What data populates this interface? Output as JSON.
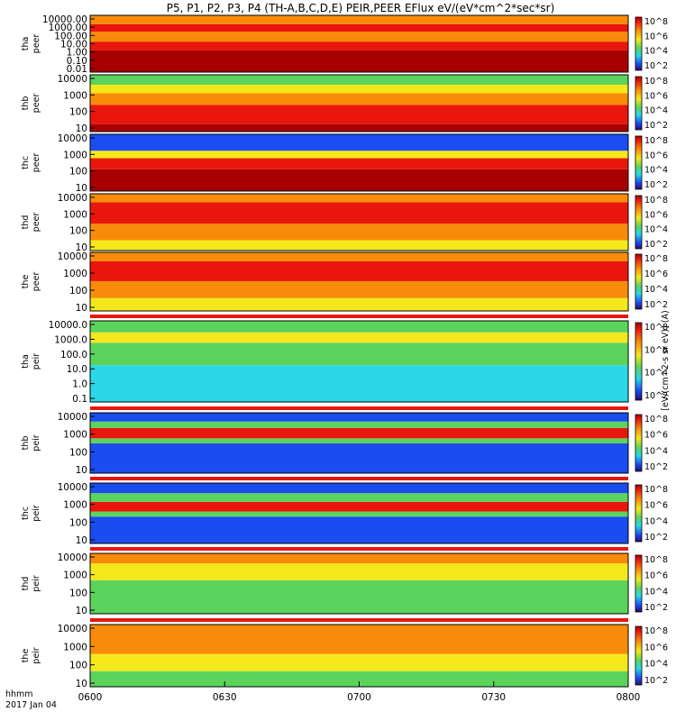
{
  "title": "P5, P1, P2, P3, P4 (TH-A,B,C,D,E) PEIR,PEER EFlux eV/(eV*cm^2*sec*sr)",
  "colorbar_label": "[eV/(cm^2-s sr eV)] (A)",
  "bottom_label": {
    "line1": "hhmm",
    "line2": "2017 Jan 04"
  },
  "colorbar_ticks": [
    "10^2",
    "10^4",
    "10^6",
    "10^8"
  ],
  "colors": {
    "red": "#e8160c",
    "orange": "#f88c0a",
    "yellow": "#f4e81c",
    "green": "#5cd35c",
    "cyan": "#2ad8e8",
    "blue": "#1a4cf0",
    "darkred": "#a80000",
    "black": "#000000"
  },
  "chart_data": [
    {
      "type": "heatmap",
      "probe": "tha",
      "species": "peer",
      "ylabel": "tha peer",
      "yscale": "log",
      "yticks": [
        "10000.00",
        "1000.00",
        "100.00",
        "10.00",
        "1.00",
        "0.10",
        "0.01"
      ],
      "ylim": [
        0.01,
        30000
      ],
      "description_bands": [
        {
          "from": 0.01,
          "to": 3,
          "level": "darkred"
        },
        {
          "from": 3,
          "to": 30,
          "level": "red"
        },
        {
          "from": 30,
          "to": 400,
          "level": "orange"
        },
        {
          "from": 400,
          "to": 3000,
          "level": "red"
        },
        {
          "from": 3000,
          "to": 30000,
          "level": "orange"
        }
      ]
    },
    {
      "type": "heatmap",
      "probe": "thb",
      "species": "peer",
      "ylabel": "thb peer",
      "yscale": "log",
      "yticks": [
        "10000",
        "1000",
        "100",
        "10"
      ],
      "ylim": [
        7,
        20000
      ],
      "description_bands": [
        {
          "from": 7,
          "to": 20,
          "level": "darkred"
        },
        {
          "from": 20,
          "to": 300,
          "level": "red"
        },
        {
          "from": 300,
          "to": 1500,
          "level": "orange"
        },
        {
          "from": 1500,
          "to": 5000,
          "level": "yellow"
        },
        {
          "from": 5000,
          "to": 20000,
          "level": "green"
        }
      ]
    },
    {
      "type": "heatmap",
      "probe": "thc",
      "species": "peer",
      "ylabel": "thc peer",
      "yscale": "log",
      "yticks": [
        "10000",
        "1000",
        "100",
        "10"
      ],
      "ylim": [
        7,
        20000
      ],
      "description_bands": [
        {
          "from": 7,
          "to": 150,
          "level": "darkred"
        },
        {
          "from": 150,
          "to": 700,
          "level": "red"
        },
        {
          "from": 700,
          "to": 2000,
          "level": "yellow"
        },
        {
          "from": 2000,
          "to": 20000,
          "level": "blue"
        }
      ]
    },
    {
      "type": "heatmap",
      "probe": "thd",
      "species": "peer",
      "ylabel": "thd peer",
      "yscale": "log",
      "yticks": [
        "10000",
        "1000",
        "100",
        "10"
      ],
      "ylim": [
        7,
        20000
      ],
      "description_bands": [
        {
          "from": 7,
          "to": 30,
          "level": "yellow"
        },
        {
          "from": 30,
          "to": 300,
          "level": "orange"
        },
        {
          "from": 300,
          "to": 6000,
          "level": "red"
        },
        {
          "from": 6000,
          "to": 20000,
          "level": "orange"
        }
      ]
    },
    {
      "type": "heatmap",
      "probe": "the",
      "species": "peer",
      "ylabel": "the peer",
      "yscale": "log",
      "yticks": [
        "10000",
        "1000",
        "100",
        "10"
      ],
      "ylim": [
        7,
        20000
      ],
      "description_bands": [
        {
          "from": 7,
          "to": 40,
          "level": "yellow"
        },
        {
          "from": 40,
          "to": 400,
          "level": "orange"
        },
        {
          "from": 400,
          "to": 6000,
          "level": "red"
        },
        {
          "from": 6000,
          "to": 20000,
          "level": "orange"
        }
      ]
    },
    {
      "type": "heatmap",
      "probe": "tha",
      "species": "peir",
      "ylabel": "tha peir",
      "yscale": "log",
      "yticks": [
        "10000.0",
        "1000.0",
        "100.0",
        "10.0",
        "1.0",
        "0.1"
      ],
      "ylim": [
        0.1,
        30000
      ],
      "description_bands": [
        {
          "from": 0.1,
          "to": 30,
          "level": "cyan"
        },
        {
          "from": 30,
          "to": 1000,
          "level": "green"
        },
        {
          "from": 1000,
          "to": 5000,
          "level": "yellow"
        },
        {
          "from": 5000,
          "to": 30000,
          "level": "green"
        }
      ]
    },
    {
      "type": "heatmap",
      "probe": "thb",
      "species": "peir",
      "ylabel": "thb peir",
      "yscale": "log",
      "yticks": [
        "10000",
        "1000",
        "100",
        "10"
      ],
      "ylim": [
        5,
        20000
      ],
      "description_bands": [
        {
          "from": 5,
          "to": 300,
          "level": "blue"
        },
        {
          "from": 300,
          "to": 600,
          "level": "green"
        },
        {
          "from": 600,
          "to": 2500,
          "level": "red"
        },
        {
          "from": 2500,
          "to": 6000,
          "level": "green"
        },
        {
          "from": 6000,
          "to": 20000,
          "level": "blue"
        }
      ]
    },
    {
      "type": "heatmap",
      "probe": "thc",
      "species": "peir",
      "ylabel": "thc peir",
      "yscale": "log",
      "yticks": [
        "10000",
        "1000",
        "100",
        "10"
      ],
      "ylim": [
        5,
        20000
      ],
      "description_bands": [
        {
          "from": 5,
          "to": 200,
          "level": "blue"
        },
        {
          "from": 200,
          "to": 400,
          "level": "green"
        },
        {
          "from": 400,
          "to": 1500,
          "level": "red"
        },
        {
          "from": 1500,
          "to": 5000,
          "level": "green"
        },
        {
          "from": 5000,
          "to": 20000,
          "level": "blue"
        }
      ]
    },
    {
      "type": "heatmap",
      "probe": "thd",
      "species": "peir",
      "ylabel": "thd peir",
      "yscale": "log",
      "yticks": [
        "10000",
        "1000",
        "100",
        "10"
      ],
      "ylim": [
        5,
        20000
      ],
      "description_bands": [
        {
          "from": 5,
          "to": 500,
          "level": "green"
        },
        {
          "from": 500,
          "to": 5000,
          "level": "yellow"
        },
        {
          "from": 5000,
          "to": 20000,
          "level": "orange"
        }
      ]
    },
    {
      "type": "heatmap",
      "probe": "the",
      "species": "peir",
      "ylabel": "the peir",
      "yscale": "log",
      "yticks": [
        "10000",
        "1000",
        "100",
        "10"
      ],
      "ylim": [
        5,
        20000
      ],
      "description_bands": [
        {
          "from": 5,
          "to": 40,
          "level": "green"
        },
        {
          "from": 40,
          "to": 400,
          "level": "yellow"
        },
        {
          "from": 400,
          "to": 20000,
          "level": "orange"
        }
      ]
    }
  ],
  "xaxis": {
    "tick_labels": [
      "0600",
      "0630",
      "0700",
      "0730",
      "0800"
    ],
    "range": [
      "06:00",
      "08:00"
    ]
  }
}
